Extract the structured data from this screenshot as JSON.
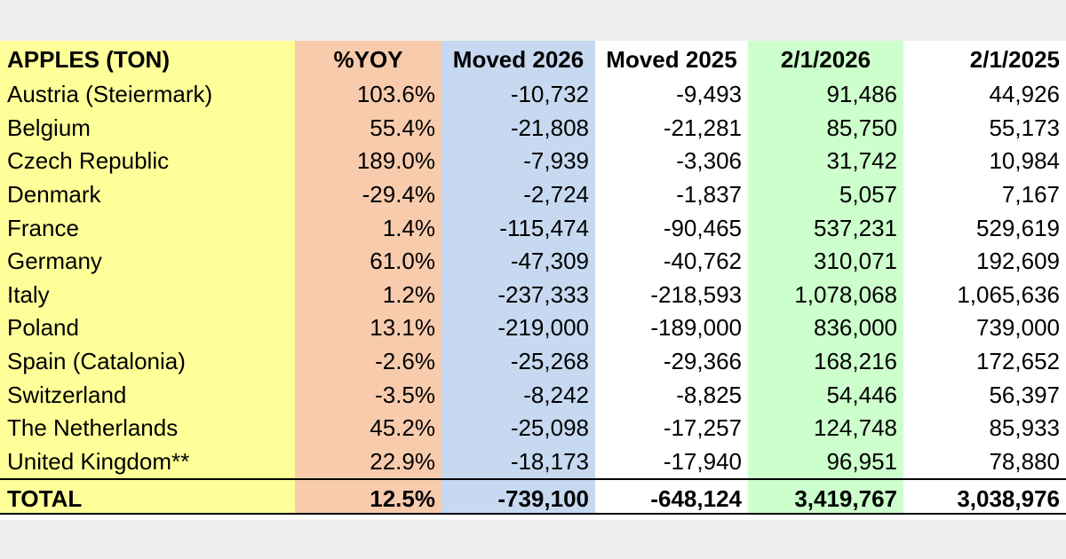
{
  "table": {
    "headers": [
      "APPLES (TON)",
      "%YOY",
      "Moved 2026",
      "Moved 2025",
      "2/1/2026",
      "2/1/2025"
    ],
    "rows": [
      [
        "Austria (Steiermark)",
        "103.6%",
        "-10,732",
        "-9,493",
        "91,486",
        "44,926"
      ],
      [
        "Belgium",
        "55.4%",
        "-21,808",
        "-21,281",
        "85,750",
        "55,173"
      ],
      [
        "Czech Republic",
        "189.0%",
        "-7,939",
        "-3,306",
        "31,742",
        "10,984"
      ],
      [
        "Denmark",
        "-29.4%",
        "-2,724",
        "-1,837",
        "5,057",
        "7,167"
      ],
      [
        "France",
        "1.4%",
        "-115,474",
        "-90,465",
        "537,231",
        "529,619"
      ],
      [
        "Germany",
        "61.0%",
        "-47,309",
        "-40,762",
        "310,071",
        "192,609"
      ],
      [
        "Italy",
        "1.2%",
        "-237,333",
        "-218,593",
        "1,078,068",
        "1,065,636"
      ],
      [
        "Poland",
        "13.1%",
        "-219,000",
        "-189,000",
        "836,000",
        "739,000"
      ],
      [
        "Spain (Catalonia)",
        "-2.6%",
        "-25,268",
        "-29,366",
        "168,216",
        "172,652"
      ],
      [
        "Switzerland",
        "-3.5%",
        "-8,242",
        "-8,825",
        "54,446",
        "56,397"
      ],
      [
        "The Netherlands",
        "45.2%",
        "-25,098",
        "-17,257",
        "124,748",
        "85,933"
      ],
      [
        "United Kingdom**",
        "22.9%",
        "-18,173",
        "-17,940",
        "96,951",
        "78,880"
      ]
    ],
    "total": [
      "TOTAL",
      "12.5%",
      "-739,100",
      "-648,124",
      "3,419,767",
      "3,038,976"
    ]
  },
  "colors": {
    "country_column": "#ffff99",
    "yoy_column": "#f8cbad",
    "moved_2026_column": "#c6d9f0",
    "stock_2026_column": "#ccffcc"
  }
}
